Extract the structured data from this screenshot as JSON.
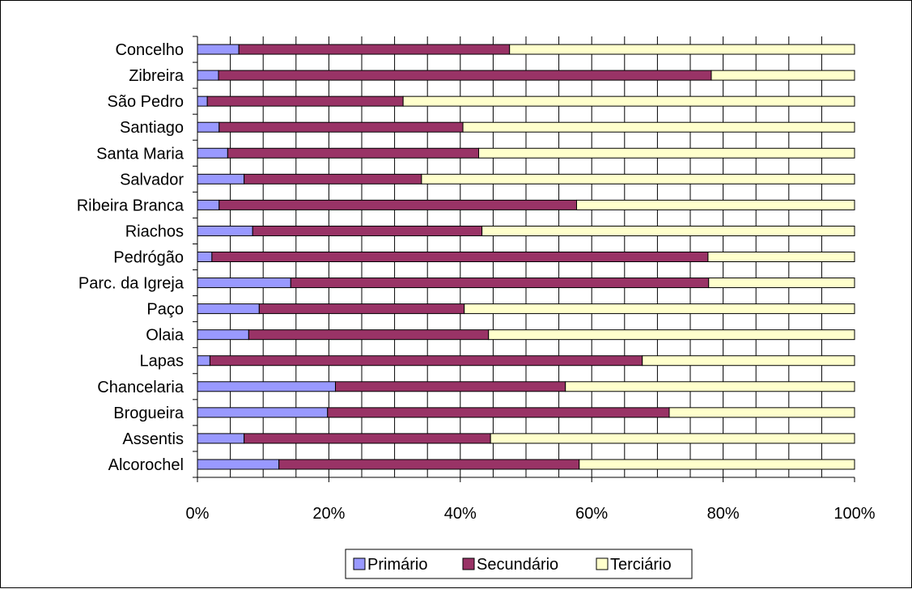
{
  "chart_data": {
    "type": "bar",
    "orientation": "horizontal",
    "stacked": "percent",
    "title": "",
    "xlabel": "",
    "ylabel": "",
    "xlim": [
      0,
      100
    ],
    "x_ticks": [
      "0%",
      "20%",
      "40%",
      "60%",
      "80%",
      "100%"
    ],
    "grid": "vertical",
    "legend_position": "bottom",
    "categories": [
      "Concelho",
      "Zibreira",
      "São Pedro",
      "Santiago",
      "Santa Maria",
      "Salvador",
      "Ribeira Branca",
      "Riachos",
      "Pedrógão",
      "Parc. da Igreja",
      "Paço",
      "Olaia",
      "Lapas",
      "Chancelaria",
      "Brogueira",
      "Assentis",
      "Alcorochel"
    ],
    "series": [
      {
        "name": "Primário",
        "color": "#9999FF",
        "values": [
          6.3,
          3.2,
          1.5,
          3.3,
          4.6,
          7.1,
          3.3,
          8.4,
          2.2,
          14.2,
          9.4,
          7.8,
          1.9,
          21.0,
          19.8,
          7.1,
          12.4
        ]
      },
      {
        "name": "Secundário",
        "color": "#993366",
        "values": [
          41.2,
          75.0,
          29.8,
          37.1,
          38.2,
          27.0,
          54.4,
          34.9,
          75.5,
          63.6,
          31.2,
          36.5,
          65.8,
          35.0,
          52.0,
          37.5,
          45.7
        ]
      },
      {
        "name": "Terciário",
        "color": "#FFFFCC",
        "values": [
          52.5,
          21.8,
          68.7,
          59.6,
          57.2,
          65.9,
          42.3,
          56.7,
          22.3,
          22.2,
          59.4,
          55.7,
          32.3,
          44.0,
          28.2,
          55.4,
          41.9
        ]
      }
    ]
  }
}
